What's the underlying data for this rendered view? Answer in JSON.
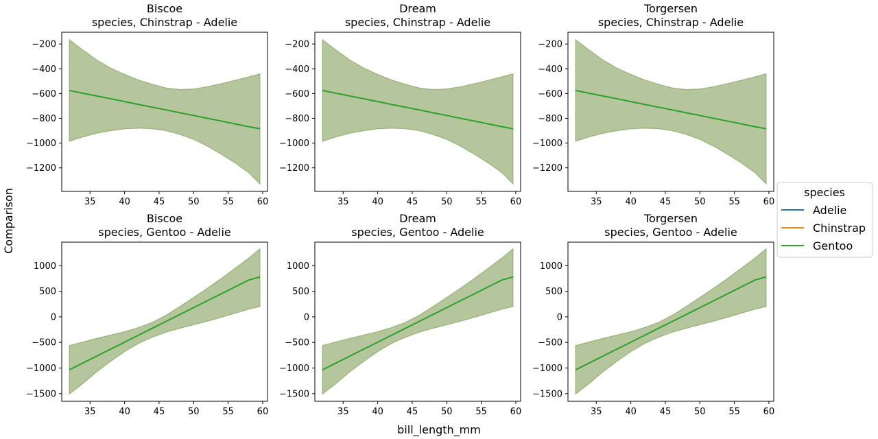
{
  "chart_data": {
    "type": "line",
    "xlabel": "bill_length_mm",
    "ylabel": "Comparison",
    "x_ticks": [
      35,
      40,
      45,
      50,
      55,
      60
    ],
    "x_range": [
      30.9,
      60.7
    ],
    "band_color": "#6b8e3c",
    "line_color": "#2ca02c",
    "legend": {
      "title": "species",
      "placement": "right",
      "entries": [
        {
          "label": "Adelie",
          "color": "#1f77b4"
        },
        {
          "label": "Chinstrap",
          "color": "#ff7f0e"
        },
        {
          "label": "Gentoo",
          "color": "#2ca02c"
        }
      ]
    },
    "rows": [
      {
        "comparison": "species, Chinstrap - Adelie",
        "y_range": [
          -1390,
          -105
        ],
        "y_ticks": [
          -1200,
          -1000,
          -800,
          -600,
          -400,
          -200
        ],
        "x": [
          32,
          34,
          36,
          38,
          40,
          42,
          44,
          46,
          48,
          50,
          52,
          54,
          56,
          58,
          59.6
        ],
        "estimate": [
          -575,
          -598,
          -620,
          -642,
          -665,
          -688,
          -710,
          -732,
          -755,
          -777,
          -800,
          -822,
          -845,
          -868,
          -884
        ],
        "lower": [
          -985,
          -950,
          -920,
          -900,
          -885,
          -880,
          -884,
          -900,
          -930,
          -970,
          -1025,
          -1090,
          -1160,
          -1240,
          -1330
        ],
        "upper": [
          -165,
          -250,
          -330,
          -395,
          -445,
          -490,
          -525,
          -555,
          -568,
          -563,
          -545,
          -520,
          -493,
          -465,
          -440
        ]
      },
      {
        "comparison": "species, Gentoo - Adelie",
        "y_range": [
          -1650,
          1460
        ],
        "y_ticks": [
          -1500,
          -1000,
          -500,
          0,
          500,
          1000
        ],
        "x": [
          32,
          34,
          36,
          38,
          40,
          42,
          44,
          46,
          48,
          50,
          52,
          54,
          56,
          58,
          59.6
        ],
        "estimate": [
          -1035,
          -900,
          -765,
          -630,
          -495,
          -360,
          -225,
          -90,
          45,
          180,
          315,
          450,
          585,
          720,
          780
        ],
        "lower": [
          -1510,
          -1300,
          -1070,
          -870,
          -680,
          -520,
          -400,
          -300,
          -225,
          -155,
          -85,
          -10,
          70,
          150,
          200
        ],
        "upper": [
          -560,
          -490,
          -420,
          -355,
          -290,
          -210,
          -110,
          30,
          200,
          380,
          560,
          750,
          950,
          1150,
          1330
        ]
      }
    ],
    "columns": [
      "Biscoe",
      "Dream",
      "Torgersen"
    ]
  }
}
